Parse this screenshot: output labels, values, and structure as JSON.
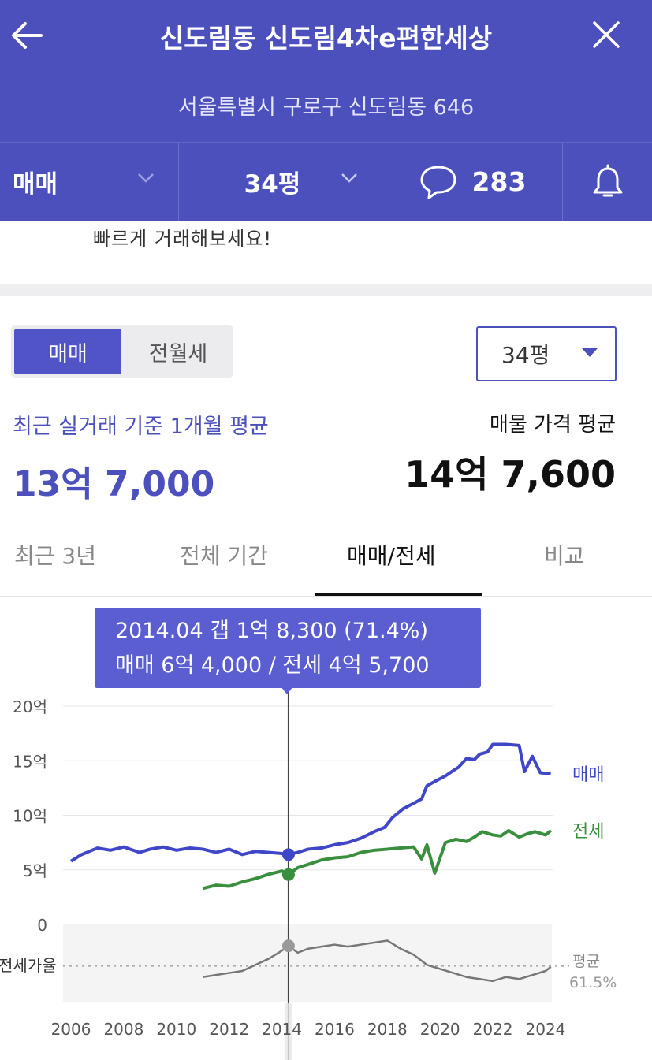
{
  "header": {
    "title": "신도림동 신도림4차e편한세상",
    "address": "서울특별시 구로구 신도림동 646",
    "deal_type": "매매",
    "size": "34평",
    "comment_count": "283",
    "colors": {
      "brand": "#4c50bd"
    }
  },
  "banner": {
    "text": "빠르게 거래해보세요!"
  },
  "summary": {
    "toggle": [
      "매매",
      "전월세"
    ],
    "size_dropdown": "34평",
    "recent_label": "최근 실거래 기준 1개월 평균",
    "recent_price": "13억 7,000",
    "listing_label": "매물 가격 평균",
    "listing_price": "14억 7,600"
  },
  "tabs": [
    "최근 3년",
    "전체 기간",
    "매매/전세",
    "비교"
  ],
  "active_tab": "매매/전세",
  "tooltip": {
    "line1": "2014.04  갭 1억 8,300 (71.4%)",
    "line2": "매매 6억 4,000 / 전세 4억 5,700"
  },
  "chart_data": {
    "type": "line",
    "x_unit": "year",
    "xlim": [
      2005.7,
      2024.3
    ],
    "ylim": [
      0,
      20
    ],
    "y_unit": "억",
    "yticks": [
      "0",
      "5억",
      "10억",
      "15억",
      "20억"
    ],
    "xticks": [
      "2006",
      "2008",
      "2010",
      "2012",
      "2014",
      "2016",
      "2018",
      "2020",
      "2022",
      "2024"
    ],
    "series": [
      {
        "name": "매매",
        "color": "#4046c8",
        "x": [
          2006.0,
          2006.4,
          2007.0,
          2007.5,
          2008.0,
          2008.6,
          2009.0,
          2009.5,
          2010.0,
          2010.5,
          2011.0,
          2011.5,
          2012.0,
          2012.5,
          2013.0,
          2013.5,
          2014.0,
          2014.25,
          2014.6,
          2015.0,
          2015.5,
          2016.0,
          2016.5,
          2017.0,
          2017.5,
          2017.9,
          2018.2,
          2018.6,
          2019.0,
          2019.3,
          2019.5,
          2019.8,
          2020.2,
          2020.5,
          2020.7,
          2021.0,
          2021.3,
          2021.5,
          2021.8,
          2022.0,
          2022.5,
          2023.0,
          2023.2,
          2023.5,
          2023.8,
          2024.2
        ],
        "y": [
          5.8,
          6.4,
          7.0,
          6.8,
          7.1,
          6.6,
          6.9,
          7.1,
          6.8,
          7.0,
          6.9,
          6.6,
          6.9,
          6.4,
          6.7,
          6.6,
          6.5,
          6.4,
          6.6,
          6.9,
          7.0,
          7.3,
          7.5,
          7.9,
          8.5,
          8.9,
          9.8,
          10.6,
          11.1,
          11.5,
          12.7,
          13.1,
          13.6,
          14.1,
          14.4,
          15.2,
          15.1,
          15.6,
          15.8,
          16.5,
          16.5,
          16.4,
          14.0,
          15.4,
          13.9,
          13.8
        ]
      },
      {
        "name": "전세",
        "color": "#3a8f3e",
        "x": [
          2011.0,
          2011.5,
          2012.0,
          2012.5,
          2013.0,
          2013.5,
          2014.0,
          2014.25,
          2014.6,
          2015.0,
          2015.5,
          2016.0,
          2016.5,
          2017.0,
          2017.5,
          2018.0,
          2018.5,
          2019.0,
          2019.3,
          2019.5,
          2019.8,
          2020.2,
          2020.6,
          2021.0,
          2021.3,
          2021.6,
          2022.0,
          2022.3,
          2022.6,
          2023.0,
          2023.3,
          2023.6,
          2024.0,
          2024.2
        ],
        "y": [
          3.3,
          3.6,
          3.5,
          3.9,
          4.2,
          4.6,
          4.9,
          4.57,
          5.2,
          5.5,
          5.9,
          6.1,
          6.2,
          6.6,
          6.8,
          6.9,
          7.0,
          7.1,
          6.0,
          7.3,
          4.7,
          7.5,
          7.8,
          7.6,
          8.0,
          8.5,
          8.2,
          8.1,
          8.6,
          8.0,
          8.3,
          8.5,
          8.2,
          8.6
        ]
      }
    ],
    "ratio_series": {
      "name": "전세가율",
      "color": "#777777",
      "average_label": "평균",
      "average": "61.5%",
      "average_value": 61.5,
      "ylim": [
        45,
        80
      ],
      "x": [
        2011.0,
        2011.5,
        2012.0,
        2012.5,
        2013.0,
        2013.5,
        2014.0,
        2014.25,
        2014.6,
        2015.0,
        2015.5,
        2016.0,
        2016.5,
        2017.0,
        2017.5,
        2018.0,
        2018.5,
        2019.0,
        2019.5,
        2020.0,
        2020.5,
        2021.0,
        2021.5,
        2022.0,
        2022.5,
        2023.0,
        2023.5,
        2024.0,
        2024.2
      ],
      "y": [
        56,
        57,
        58,
        59,
        62,
        65,
        69,
        71.4,
        68,
        70,
        71,
        72,
        71,
        72,
        73,
        74,
        70,
        67,
        62,
        60,
        58,
        56,
        55,
        54,
        56,
        55,
        57,
        59,
        61
      ]
    },
    "selected": {
      "x": 2014.25,
      "label": "2014.04"
    }
  }
}
